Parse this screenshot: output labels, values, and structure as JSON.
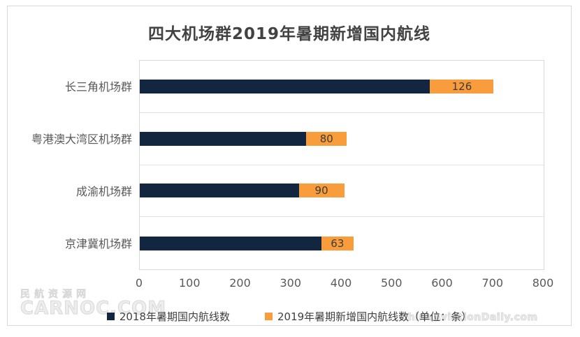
{
  "chart_data": {
    "type": "bar",
    "orientation": "horizontal",
    "stacked": true,
    "title": "四大机场群2019年暑期新增国内航线",
    "categories": [
      "长三角机场群",
      "粤港澳大湾区机场群",
      "成渝机场群",
      "京津冀机场群"
    ],
    "series": [
      {
        "name": "2018年暑期国内航线数",
        "color": "#12273f",
        "values": [
          575,
          330,
          315,
          360
        ],
        "data_labels_shown": false
      },
      {
        "name": "2019年暑期新增国内航线数（单位：条）",
        "color": "#f99d3c",
        "values": [
          126,
          80,
          90,
          63
        ],
        "data_labels_shown": true
      }
    ],
    "xlim": [
      0,
      800
    ],
    "xticks": [
      0,
      100,
      200,
      300,
      400,
      500,
      600,
      700,
      800
    ],
    "grid": "horizontal category separators only, no vertical gridlines",
    "legend_position": "bottom"
  },
  "watermarks": {
    "left_line1": "民航资源网",
    "left_line2": "CARNOC.COM",
    "right": "ChinaAviationDaily.com"
  },
  "colors": {
    "frame_border": "#d9d9d9",
    "plot_border": "#d9d9d9",
    "separator": "#e4e4e4",
    "title_text": "#424242",
    "axis_text": "#595959",
    "bar_label_text": "#3b3b3b",
    "watermark": "#d8d8d8"
  }
}
